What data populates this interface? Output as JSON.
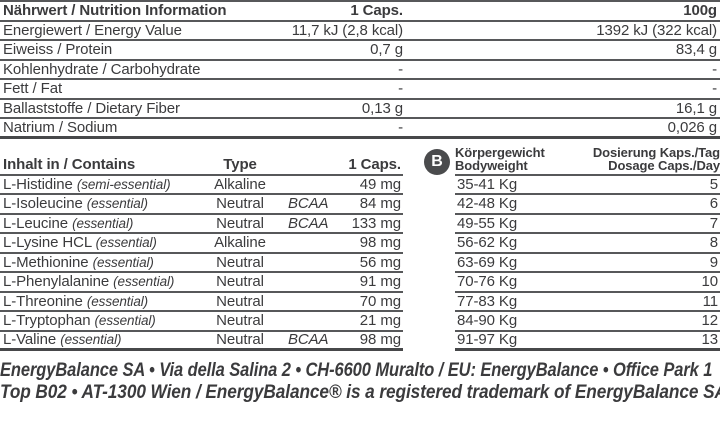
{
  "nutrition_table": {
    "headers": [
      "Nährwert / Nutrition Information",
      "1 Caps.",
      "100g"
    ],
    "rows": [
      {
        "label": "Energiewert / Energy Value",
        "per_caps": "11,7 kJ (2,8 kcal)",
        "per_100g": "1392 kJ (322 kcal)"
      },
      {
        "label": "Eiweiss / Protein",
        "per_caps": "0,7 g",
        "per_100g": "83,4 g"
      },
      {
        "label": "Kohlenhydrate / Carbohydrate",
        "per_caps": "-",
        "per_100g": "-"
      },
      {
        "label": "Fett / Fat",
        "per_caps": "-",
        "per_100g": "-"
      },
      {
        "label": "Ballaststoffe / Dietary Fiber",
        "per_caps": "0,13 g",
        "per_100g": "16,1 g"
      },
      {
        "label": "Natrium / Sodium",
        "per_caps": "-",
        "per_100g": "0,026 g"
      }
    ]
  },
  "contains_table": {
    "headers": [
      "Inhalt in / Contains",
      "Type",
      "1 Caps."
    ],
    "rows": [
      {
        "name": "L-Histidine",
        "note": "(semi-essential)",
        "type": "Alkaline",
        "bcaa": "",
        "amount": "49 mg"
      },
      {
        "name": "L-Isoleucine",
        "note": "(essential)",
        "type": "Neutral",
        "bcaa": "BCAA",
        "amount": "84 mg"
      },
      {
        "name": "L-Leucine",
        "note": "(essential)",
        "type": "Neutral",
        "bcaa": "BCAA",
        "amount": "133 mg"
      },
      {
        "name": "L-Lysine HCL",
        "note": "(essential)",
        "type": "Alkaline",
        "bcaa": "",
        "amount": "98 mg"
      },
      {
        "name": "L-Methionine",
        "note": "(essential)",
        "type": "Neutral",
        "bcaa": "",
        "amount": "56 mg"
      },
      {
        "name": "L-Phenylalanine",
        "note": "(essential)",
        "type": "Neutral",
        "bcaa": "",
        "amount": "91 mg"
      },
      {
        "name": "L-Threonine",
        "note": "(essential)",
        "type": "Neutral",
        "bcaa": "",
        "amount": "70 mg"
      },
      {
        "name": "L-Tryptophan",
        "note": "(essential)",
        "type": "Neutral",
        "bcaa": "",
        "amount": "21 mg"
      },
      {
        "name": "L-Valine",
        "note": "(essential)",
        "type": "Neutral",
        "bcaa": "BCAA",
        "amount": "98 mg"
      }
    ]
  },
  "dosage_table": {
    "badge_letter": "B",
    "col1_header": {
      "line1": "Körpergewicht",
      "line2": "Bodyweight"
    },
    "col2_header": {
      "line1": "Dosierung Kaps./Tag",
      "line2": "Dosage Caps./Day"
    },
    "rows": [
      {
        "bodyweight": "35-41 Kg",
        "dosage": "5"
      },
      {
        "bodyweight": "42-48 Kg",
        "dosage": "6"
      },
      {
        "bodyweight": "49-55 Kg",
        "dosage": "7"
      },
      {
        "bodyweight": "56-62 Kg",
        "dosage": "8"
      },
      {
        "bodyweight": "63-69 Kg",
        "dosage": "9"
      },
      {
        "bodyweight": "70-76 Kg",
        "dosage": "10"
      },
      {
        "bodyweight": "77-83 Kg",
        "dosage": "11"
      },
      {
        "bodyweight": "84-90 Kg",
        "dosage": "12"
      },
      {
        "bodyweight": "91-97 Kg",
        "dosage": "13"
      }
    ]
  },
  "footer": {
    "line1": "EnergyBalance SA • Via della Salina 2 • CH-6600 Muralto / EU: EnergyBalance • Office Park 1",
    "line2": "Top B02 • AT-1300 Wien / EnergyBalance® is a registered trademark of EnergyBalance SA"
  },
  "colors": {
    "text": "#3b3b3d",
    "rule_line": "#57585a",
    "rule_line_strong": "#47484a",
    "badge_background": "#4a4b4d"
  }
}
